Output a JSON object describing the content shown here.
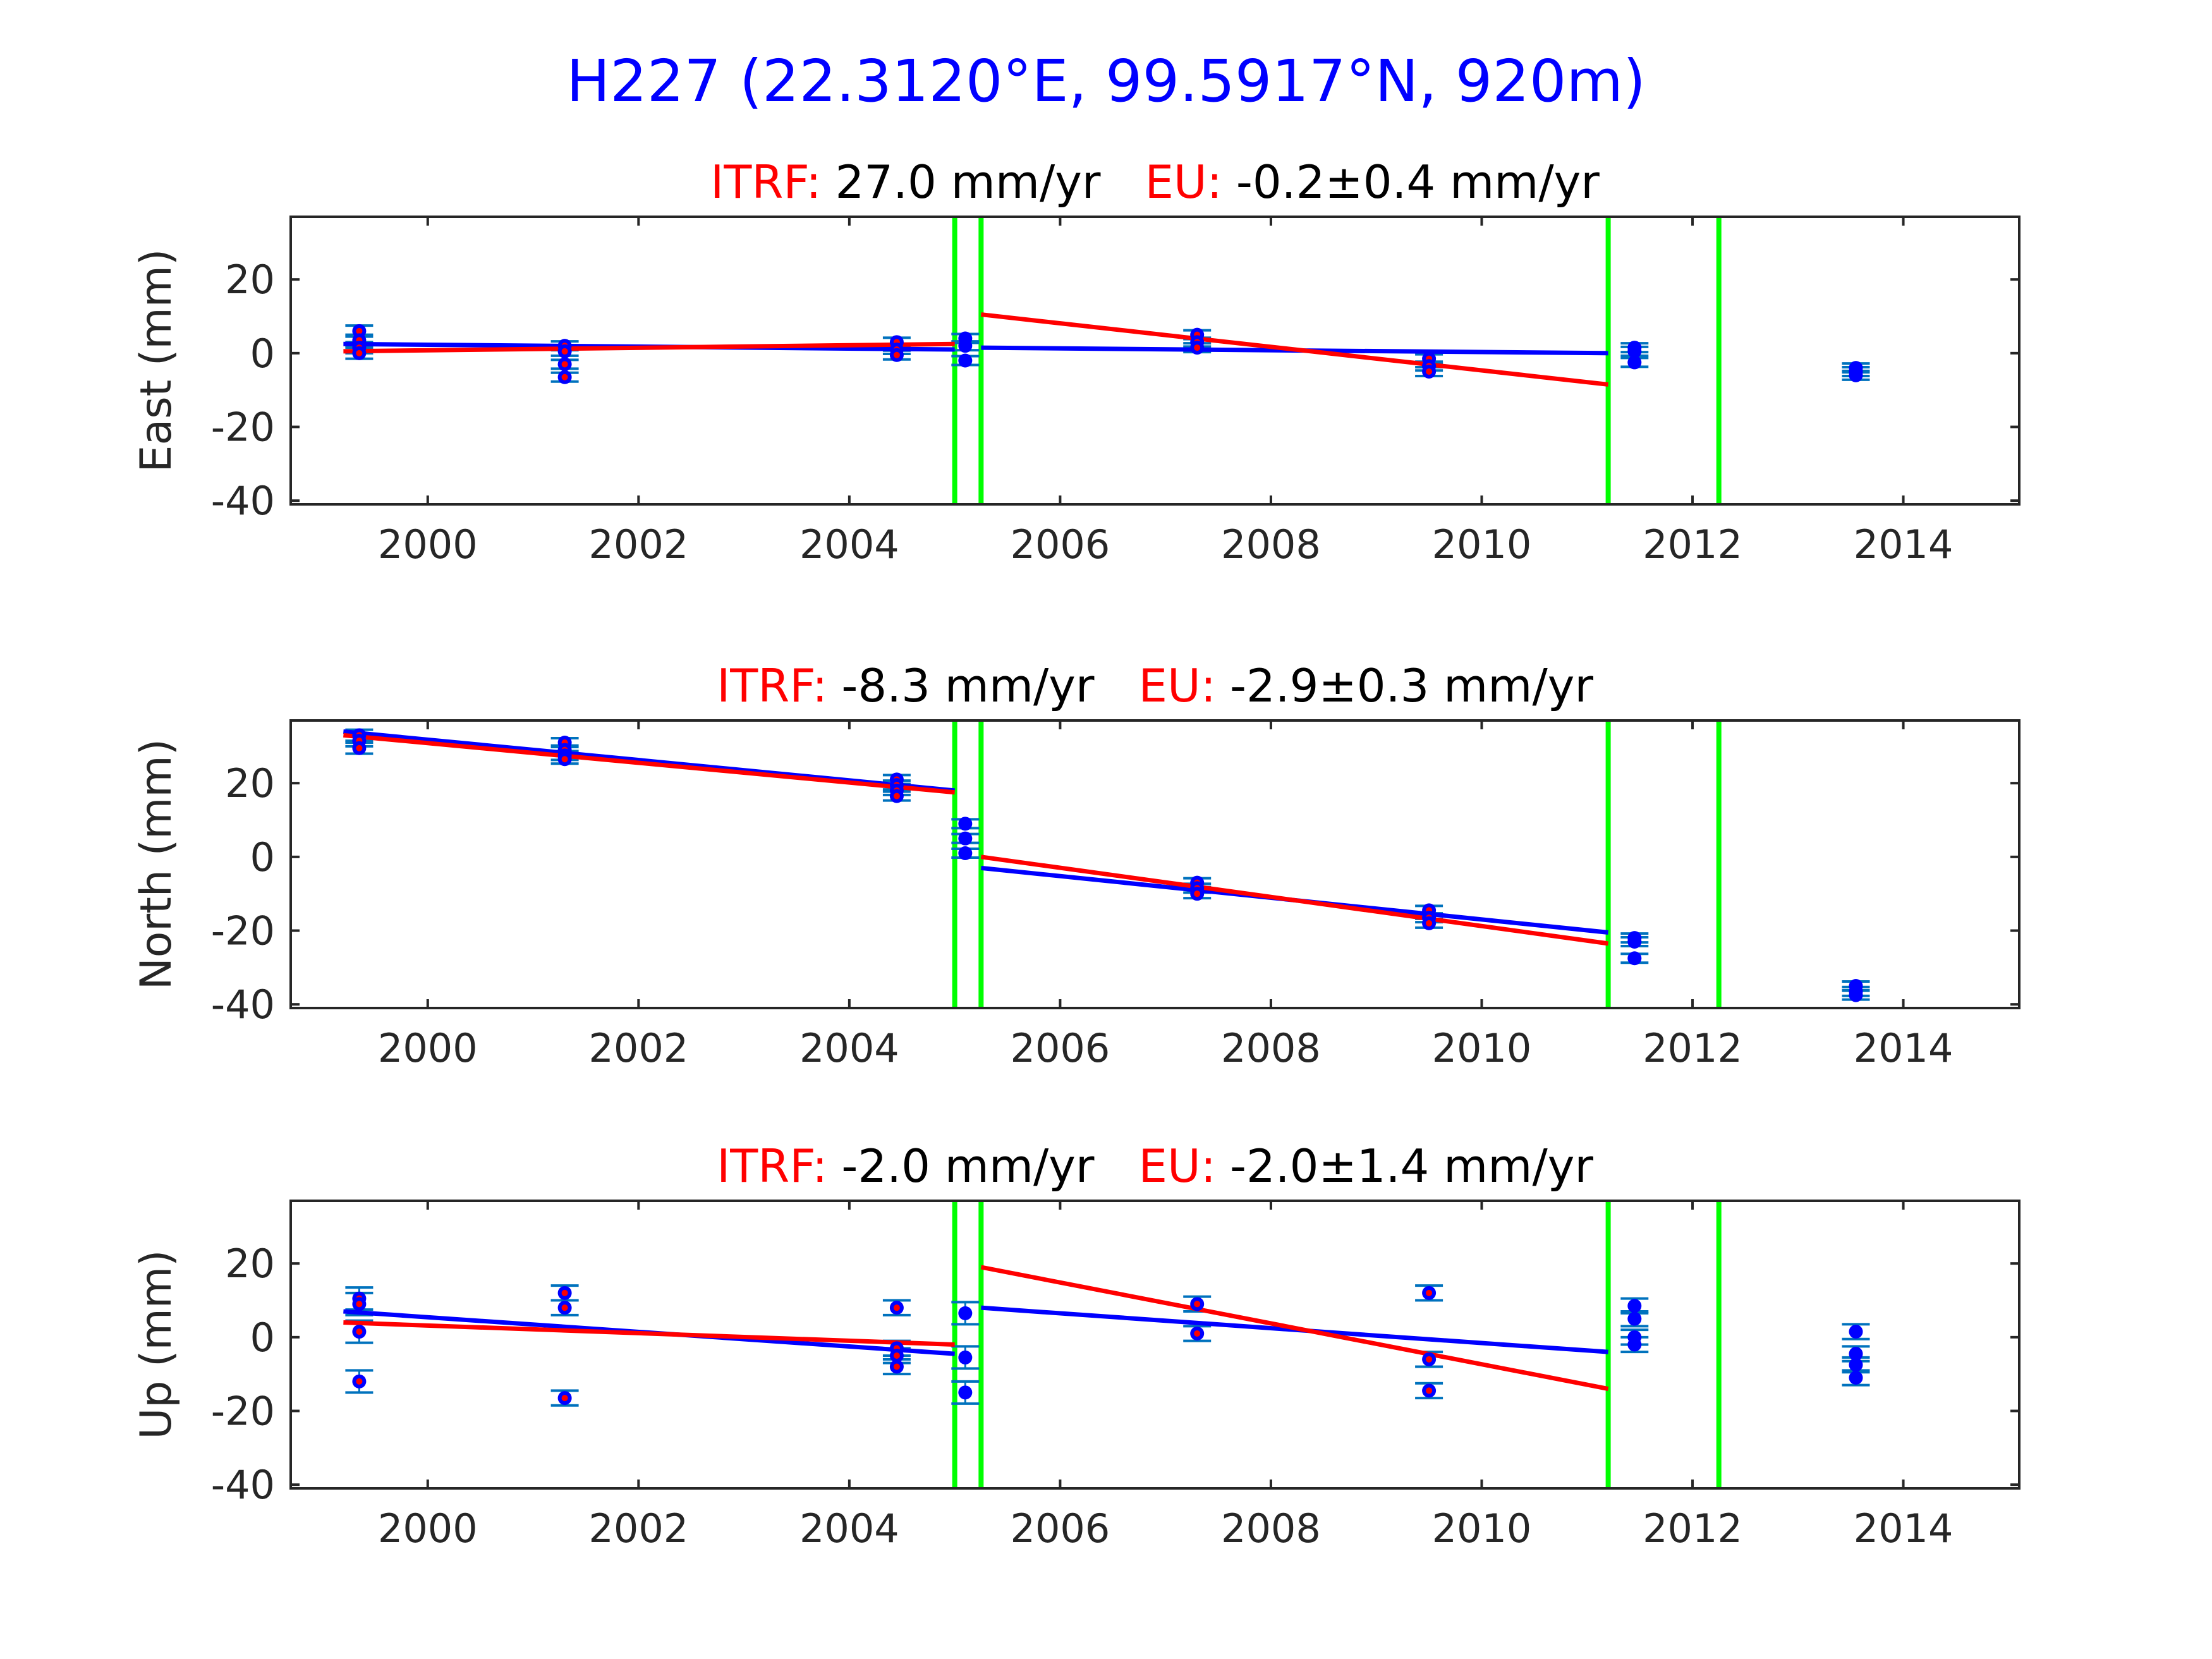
{
  "figure": {
    "title": "H227 (22.3120°E, 99.5917°N, 920m)",
    "title_color": "#0000ff",
    "colors": {
      "blue_fit": "#0000ff",
      "red_fit": "#ff0000",
      "points": "#0000ff",
      "point_center": "#ff0000",
      "errorbars": "#0072bd",
      "breaks": "#00ff00",
      "itrf_label": "#ff0000",
      "eu_label": "#ff0000"
    },
    "break_years": [
      2005.0,
      2005.25,
      2011.2,
      2012.25
    ]
  },
  "chart_data": [
    {
      "type": "scatter",
      "ylabel": "East (mm)",
      "subtitle": {
        "itrf_label": "ITRF:",
        "itrf_value": "27.0 mm/yr",
        "eu_label": "EU:",
        "eu_value": "-0.2±0.4 mm/yr"
      },
      "xlim": [
        1998.7,
        2015.1
      ],
      "ylim": [
        -41,
        37
      ],
      "xticks": [
        2000,
        2002,
        2004,
        2006,
        2008,
        2010,
        2012,
        2014
      ],
      "yticks": [
        -40,
        -20,
        0,
        20
      ],
      "points": [
        {
          "x": 1999.35,
          "y": 6,
          "err": 1.5,
          "red": true
        },
        {
          "x": 1999.35,
          "y": 3.5,
          "err": 1.5,
          "red": true
        },
        {
          "x": 1999.35,
          "y": 1.5,
          "err": 1.5,
          "red": true
        },
        {
          "x": 1999.35,
          "y": 0,
          "err": 1.5,
          "red": true
        },
        {
          "x": 2001.3,
          "y": 2,
          "err": 1.2,
          "red": true
        },
        {
          "x": 2001.3,
          "y": 0.5,
          "err": 1.2,
          "red": true
        },
        {
          "x": 2001.3,
          "y": -3,
          "err": 1.2,
          "red": true
        },
        {
          "x": 2001.3,
          "y": -6.5,
          "err": 1.2,
          "red": true
        },
        {
          "x": 2004.45,
          "y": 3,
          "err": 1.2,
          "red": true
        },
        {
          "x": 2004.45,
          "y": 1,
          "err": 1.2,
          "red": true
        },
        {
          "x": 2004.45,
          "y": -0.5,
          "err": 1.2,
          "red": true
        },
        {
          "x": 2005.1,
          "y": 4,
          "err": 1.2,
          "red": false
        },
        {
          "x": 2005.1,
          "y": 2,
          "err": 1.2,
          "red": false
        },
        {
          "x": 2005.1,
          "y": -2,
          "err": 1.2,
          "red": false
        },
        {
          "x": 2007.3,
          "y": 5,
          "err": 1.2,
          "red": true
        },
        {
          "x": 2007.3,
          "y": 3,
          "err": 1.2,
          "red": true
        },
        {
          "x": 2007.3,
          "y": 1.5,
          "err": 1.2,
          "red": true
        },
        {
          "x": 2009.5,
          "y": -1.5,
          "err": 1.2,
          "red": true
        },
        {
          "x": 2009.5,
          "y": -3.5,
          "err": 1.2,
          "red": true
        },
        {
          "x": 2009.5,
          "y": -5,
          "err": 1.2,
          "red": true
        },
        {
          "x": 2011.45,
          "y": 1.5,
          "err": 1.2,
          "red": false
        },
        {
          "x": 2011.45,
          "y": 0.5,
          "err": 1.2,
          "red": false
        },
        {
          "x": 2011.45,
          "y": -2.5,
          "err": 1.2,
          "red": false
        },
        {
          "x": 2013.55,
          "y": -4,
          "err": 1.2,
          "red": false
        },
        {
          "x": 2013.55,
          "y": -5,
          "err": 1.2,
          "red": false
        },
        {
          "x": 2013.55,
          "y": -6,
          "err": 1.2,
          "red": false
        }
      ],
      "blue_fits": [
        {
          "x": [
            1999.2,
            2005.0
          ],
          "y": [
            2.5,
            1.0
          ]
        },
        {
          "x": [
            2005.25,
            2011.2
          ],
          "y": [
            1.5,
            0.0
          ]
        }
      ],
      "red_fits": [
        {
          "x": [
            1999.2,
            2005.0
          ],
          "y": [
            0.5,
            2.5
          ]
        },
        {
          "x": [
            2005.25,
            2011.2
          ],
          "y": [
            10.5,
            -8.5
          ]
        }
      ]
    },
    {
      "type": "scatter",
      "ylabel": "North (mm)",
      "subtitle": {
        "itrf_label": "ITRF:",
        "itrf_value": "-8.3 mm/yr",
        "eu_label": "EU:",
        "eu_value": "-2.9±0.3 mm/yr"
      },
      "xlim": [
        1998.7,
        2015.1
      ],
      "ylim": [
        -41,
        37
      ],
      "xticks": [
        2000,
        2002,
        2004,
        2006,
        2008,
        2010,
        2012,
        2014
      ],
      "yticks": [
        -40,
        -20,
        0,
        20
      ],
      "points": [
        {
          "x": 1999.35,
          "y": 33,
          "err": 1.5,
          "red": true
        },
        {
          "x": 1999.35,
          "y": 31.5,
          "err": 1.5,
          "red": true
        },
        {
          "x": 1999.35,
          "y": 29.5,
          "err": 1.5,
          "red": true
        },
        {
          "x": 2001.3,
          "y": 31,
          "err": 1.2,
          "red": true
        },
        {
          "x": 2001.3,
          "y": 29,
          "err": 1.2,
          "red": true
        },
        {
          "x": 2001.3,
          "y": 27.5,
          "err": 1.2,
          "red": true
        },
        {
          "x": 2001.3,
          "y": 26.5,
          "err": 1.2,
          "red": true
        },
        {
          "x": 2004.45,
          "y": 21,
          "err": 1.2,
          "red": true
        },
        {
          "x": 2004.45,
          "y": 19.5,
          "err": 1.2,
          "red": true
        },
        {
          "x": 2004.45,
          "y": 18,
          "err": 1.2,
          "red": true
        },
        {
          "x": 2004.45,
          "y": 16.5,
          "err": 1.2,
          "red": true
        },
        {
          "x": 2005.1,
          "y": 9,
          "err": 1.2,
          "red": false
        },
        {
          "x": 2005.1,
          "y": 5,
          "err": 1.2,
          "red": false
        },
        {
          "x": 2005.1,
          "y": 1,
          "err": 1.2,
          "red": false
        },
        {
          "x": 2007.3,
          "y": -7,
          "err": 1.2,
          "red": true
        },
        {
          "x": 2007.3,
          "y": -8.5,
          "err": 1.2,
          "red": true
        },
        {
          "x": 2007.3,
          "y": -10,
          "err": 1.2,
          "red": true
        },
        {
          "x": 2009.5,
          "y": -14.5,
          "err": 1.2,
          "red": true
        },
        {
          "x": 2009.5,
          "y": -16.5,
          "err": 1.2,
          "red": true
        },
        {
          "x": 2009.5,
          "y": -18,
          "err": 1.2,
          "red": true
        },
        {
          "x": 2011.45,
          "y": -22,
          "err": 1.2,
          "red": false
        },
        {
          "x": 2011.45,
          "y": -23,
          "err": 1.2,
          "red": false
        },
        {
          "x": 2011.45,
          "y": -27.5,
          "err": 1.2,
          "red": false
        },
        {
          "x": 2013.55,
          "y": -35,
          "err": 1.2,
          "red": false
        },
        {
          "x": 2013.55,
          "y": -36.5,
          "err": 1.2,
          "red": false
        },
        {
          "x": 2013.55,
          "y": -37.5,
          "err": 1.2,
          "red": false
        }
      ],
      "blue_fits": [
        {
          "x": [
            1999.2,
            2005.0
          ],
          "y": [
            34.0,
            18.0
          ]
        },
        {
          "x": [
            2005.25,
            2011.2
          ],
          "y": [
            -3.0,
            -20.5
          ]
        }
      ],
      "red_fits": [
        {
          "x": [
            1999.2,
            2005.0
          ],
          "y": [
            33.0,
            17.5
          ]
        },
        {
          "x": [
            2005.25,
            2011.2
          ],
          "y": [
            0.0,
            -23.5
          ]
        }
      ]
    },
    {
      "type": "scatter",
      "ylabel": "Up (mm)",
      "subtitle": {
        "itrf_label": "ITRF:",
        "itrf_value": "-2.0 mm/yr",
        "eu_label": "EU:",
        "eu_value": "-2.0±1.4 mm/yr"
      },
      "xlim": [
        1998.7,
        2015.1
      ],
      "ylim": [
        -41,
        37
      ],
      "xticks": [
        2000,
        2002,
        2004,
        2006,
        2008,
        2010,
        2012,
        2014
      ],
      "yticks": [
        -40,
        -20,
        0,
        20
      ],
      "points": [
        {
          "x": 1999.35,
          "y": 10.5,
          "err": 3,
          "red": true
        },
        {
          "x": 1999.35,
          "y": 9,
          "err": 3,
          "red": true
        },
        {
          "x": 1999.35,
          "y": 1.5,
          "err": 3,
          "red": true
        },
        {
          "x": 1999.35,
          "y": -12,
          "err": 3,
          "red": true
        },
        {
          "x": 2001.3,
          "y": 12,
          "err": 2,
          "red": true
        },
        {
          "x": 2001.3,
          "y": 8,
          "err": 2,
          "red": true
        },
        {
          "x": 2001.3,
          "y": -16.5,
          "err": 2,
          "red": true
        },
        {
          "x": 2004.45,
          "y": 8,
          "err": 2,
          "red": true
        },
        {
          "x": 2004.45,
          "y": -3,
          "err": 2,
          "red": true
        },
        {
          "x": 2004.45,
          "y": -5,
          "err": 2,
          "red": true
        },
        {
          "x": 2004.45,
          "y": -8,
          "err": 2,
          "red": true
        },
        {
          "x": 2005.1,
          "y": 6.5,
          "err": 3,
          "red": false
        },
        {
          "x": 2005.1,
          "y": -5.5,
          "err": 3,
          "red": false
        },
        {
          "x": 2005.1,
          "y": -15,
          "err": 3,
          "red": false
        },
        {
          "x": 2007.3,
          "y": 9,
          "err": 2,
          "red": true
        },
        {
          "x": 2007.3,
          "y": 1,
          "err": 2,
          "red": true
        },
        {
          "x": 2009.5,
          "y": 12,
          "err": 2,
          "red": true
        },
        {
          "x": 2009.5,
          "y": -6,
          "err": 2,
          "red": true
        },
        {
          "x": 2009.5,
          "y": -14.5,
          "err": 2,
          "red": true
        },
        {
          "x": 2011.45,
          "y": 8.5,
          "err": 2,
          "red": false
        },
        {
          "x": 2011.45,
          "y": 5,
          "err": 2,
          "red": false
        },
        {
          "x": 2011.45,
          "y": 0,
          "err": 2,
          "red": false
        },
        {
          "x": 2011.45,
          "y": -2,
          "err": 2,
          "red": false
        },
        {
          "x": 2013.55,
          "y": 1.5,
          "err": 2,
          "red": false
        },
        {
          "x": 2013.55,
          "y": -4.5,
          "err": 2,
          "red": false
        },
        {
          "x": 2013.55,
          "y": -7.5,
          "err": 2,
          "red": false
        },
        {
          "x": 2013.55,
          "y": -11,
          "err": 2,
          "red": false
        }
      ],
      "blue_fits": [
        {
          "x": [
            1999.2,
            2005.0
          ],
          "y": [
            7.0,
            -4.5
          ]
        },
        {
          "x": [
            2005.25,
            2011.2
          ],
          "y": [
            8.0,
            -4.0
          ]
        }
      ],
      "red_fits": [
        {
          "x": [
            1999.2,
            2005.0
          ],
          "y": [
            4.0,
            -2.0
          ]
        },
        {
          "x": [
            2005.25,
            2011.2
          ],
          "y": [
            19.0,
            -14.0
          ]
        }
      ]
    }
  ]
}
